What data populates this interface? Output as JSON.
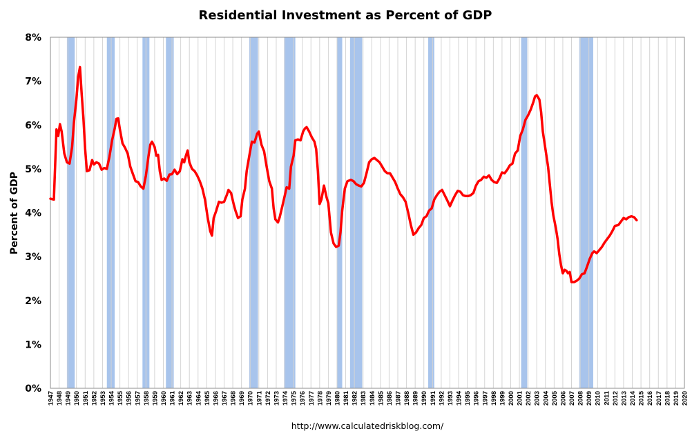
{
  "chart_data": {
    "type": "line",
    "title": "Residential Investment as Percent of GDP",
    "ylabel": "Percent of GDP",
    "xlabel": "",
    "footer": "http://www.calculatedriskblog.com/",
    "xlim": [
      1947,
      2020
    ],
    "ylim": [
      0,
      8
    ],
    "y_ticks": [
      "0%",
      "1%",
      "2%",
      "3%",
      "4%",
      "5%",
      "6%",
      "7%",
      "8%"
    ],
    "x_tick_labels": [
      "1947",
      "1948",
      "1949",
      "1950",
      "1951",
      "1952",
      "1953",
      "1954",
      "1955",
      "1956",
      "1957",
      "1958",
      "1959",
      "1960",
      "1961",
      "1962",
      "1963",
      "1964",
      "1965",
      "1966",
      "1967",
      "1968",
      "1969",
      "1970",
      "1971",
      "1972",
      "1973",
      "1974",
      "1975",
      "1976",
      "1977",
      "1978",
      "1979",
      "1980",
      "1981",
      "1982",
      "1983",
      "1984",
      "1985",
      "1986",
      "1987",
      "1988",
      "1989",
      "1990",
      "1991",
      "1992",
      "1993",
      "1994",
      "1995",
      "1996",
      "1997",
      "1998",
      "1999",
      "2000",
      "2001",
      "2002",
      "2003",
      "2004",
      "2005",
      "2006",
      "2007",
      "2008",
      "2009",
      "2010",
      "2011",
      "2012",
      "2013",
      "2014",
      "2015",
      "2016",
      "2017",
      "2018",
      "2019",
      "2020"
    ],
    "grid": "vertical",
    "line_color": "#ff0000",
    "recession_color": "#a8c4ec",
    "recessions": [
      [
        1948.9,
        1949.8
      ],
      [
        1953.5,
        1954.4
      ],
      [
        1957.6,
        1958.4
      ],
      [
        1960.3,
        1961.2
      ],
      [
        1969.9,
        1970.9
      ],
      [
        1973.9,
        1975.2
      ],
      [
        1980.0,
        1980.6
      ],
      [
        1981.5,
        1982.9
      ],
      [
        1990.5,
        1991.2
      ],
      [
        2001.2,
        2001.9
      ],
      [
        2007.9,
        2009.5
      ]
    ],
    "series": [
      {
        "values": [
          [
            1947.0,
            4.32
          ],
          [
            1947.4,
            4.3
          ],
          [
            1947.7,
            5.9
          ],
          [
            1947.9,
            5.75
          ],
          [
            1948.1,
            6.02
          ],
          [
            1948.3,
            5.85
          ],
          [
            1948.6,
            5.35
          ],
          [
            1948.9,
            5.15
          ],
          [
            1949.2,
            5.12
          ],
          [
            1949.5,
            5.5
          ],
          [
            1949.7,
            6.05
          ],
          [
            1950.0,
            6.6
          ],
          [
            1950.2,
            7.1
          ],
          [
            1950.4,
            7.32
          ],
          [
            1950.6,
            6.7
          ],
          [
            1950.8,
            6.15
          ],
          [
            1951.0,
            5.45
          ],
          [
            1951.2,
            4.95
          ],
          [
            1951.5,
            4.97
          ],
          [
            1951.8,
            5.2
          ],
          [
            1952.0,
            5.1
          ],
          [
            1952.3,
            5.15
          ],
          [
            1952.6,
            5.12
          ],
          [
            1952.9,
            4.98
          ],
          [
            1953.2,
            5.02
          ],
          [
            1953.5,
            5.0
          ],
          [
            1953.8,
            5.28
          ],
          [
            1954.1,
            5.65
          ],
          [
            1954.4,
            5.92
          ],
          [
            1954.6,
            6.14
          ],
          [
            1954.8,
            6.15
          ],
          [
            1955.0,
            5.9
          ],
          [
            1955.3,
            5.58
          ],
          [
            1955.6,
            5.48
          ],
          [
            1955.9,
            5.35
          ],
          [
            1956.2,
            5.05
          ],
          [
            1956.5,
            4.88
          ],
          [
            1956.8,
            4.72
          ],
          [
            1957.1,
            4.7
          ],
          [
            1957.4,
            4.6
          ],
          [
            1957.7,
            4.55
          ],
          [
            1958.0,
            4.85
          ],
          [
            1958.3,
            5.3
          ],
          [
            1958.5,
            5.55
          ],
          [
            1958.7,
            5.62
          ],
          [
            1959.0,
            5.5
          ],
          [
            1959.2,
            5.3
          ],
          [
            1959.4,
            5.32
          ],
          [
            1959.6,
            4.95
          ],
          [
            1959.8,
            4.75
          ],
          [
            1960.1,
            4.78
          ],
          [
            1960.4,
            4.73
          ],
          [
            1960.7,
            4.87
          ],
          [
            1961.0,
            4.88
          ],
          [
            1961.3,
            4.98
          ],
          [
            1961.6,
            4.88
          ],
          [
            1961.9,
            4.95
          ],
          [
            1962.2,
            5.22
          ],
          [
            1962.4,
            5.15
          ],
          [
            1962.6,
            5.3
          ],
          [
            1962.8,
            5.42
          ],
          [
            1963.0,
            5.15
          ],
          [
            1963.3,
            5.0
          ],
          [
            1963.6,
            4.95
          ],
          [
            1963.9,
            4.85
          ],
          [
            1964.2,
            4.72
          ],
          [
            1964.5,
            4.55
          ],
          [
            1964.8,
            4.3
          ],
          [
            1965.1,
            3.9
          ],
          [
            1965.4,
            3.58
          ],
          [
            1965.6,
            3.48
          ],
          [
            1965.8,
            3.88
          ],
          [
            1966.1,
            4.05
          ],
          [
            1966.4,
            4.25
          ],
          [
            1966.7,
            4.23
          ],
          [
            1967.0,
            4.25
          ],
          [
            1967.3,
            4.4
          ],
          [
            1967.5,
            4.52
          ],
          [
            1967.8,
            4.45
          ],
          [
            1968.1,
            4.2
          ],
          [
            1968.3,
            4.05
          ],
          [
            1968.6,
            3.88
          ],
          [
            1968.9,
            3.92
          ],
          [
            1969.1,
            4.3
          ],
          [
            1969.4,
            4.55
          ],
          [
            1969.6,
            4.95
          ],
          [
            1969.9,
            5.3
          ],
          [
            1970.2,
            5.62
          ],
          [
            1970.5,
            5.6
          ],
          [
            1970.8,
            5.8
          ],
          [
            1971.0,
            5.85
          ],
          [
            1971.3,
            5.55
          ],
          [
            1971.6,
            5.4
          ],
          [
            1971.9,
            5.05
          ],
          [
            1972.2,
            4.72
          ],
          [
            1972.5,
            4.55
          ],
          [
            1972.7,
            4.1
          ],
          [
            1972.9,
            3.85
          ],
          [
            1973.2,
            3.78
          ],
          [
            1973.4,
            3.9
          ],
          [
            1973.7,
            4.15
          ],
          [
            1974.0,
            4.4
          ],
          [
            1974.2,
            4.58
          ],
          [
            1974.5,
            4.55
          ],
          [
            1974.7,
            5.05
          ],
          [
            1975.0,
            5.3
          ],
          [
            1975.2,
            5.65
          ],
          [
            1975.5,
            5.67
          ],
          [
            1975.8,
            5.65
          ],
          [
            1976.1,
            5.85
          ],
          [
            1976.3,
            5.92
          ],
          [
            1976.5,
            5.95
          ],
          [
            1976.8,
            5.85
          ],
          [
            1977.1,
            5.72
          ],
          [
            1977.4,
            5.62
          ],
          [
            1977.6,
            5.45
          ],
          [
            1977.8,
            4.95
          ],
          [
            1978.0,
            4.2
          ],
          [
            1978.2,
            4.3
          ],
          [
            1978.5,
            4.62
          ],
          [
            1978.8,
            4.35
          ],
          [
            1979.0,
            4.22
          ],
          [
            1979.3,
            3.55
          ],
          [
            1979.6,
            3.3
          ],
          [
            1979.9,
            3.22
          ],
          [
            1980.2,
            3.25
          ],
          [
            1980.4,
            3.55
          ],
          [
            1980.6,
            4.05
          ],
          [
            1980.9,
            4.55
          ],
          [
            1981.2,
            4.72
          ],
          [
            1981.6,
            4.75
          ],
          [
            1981.9,
            4.72
          ],
          [
            1982.2,
            4.65
          ],
          [
            1982.5,
            4.62
          ],
          [
            1982.8,
            4.6
          ],
          [
            1983.1,
            4.68
          ],
          [
            1983.4,
            4.9
          ],
          [
            1983.7,
            5.15
          ],
          [
            1984.0,
            5.22
          ],
          [
            1984.3,
            5.25
          ],
          [
            1984.6,
            5.2
          ],
          [
            1984.9,
            5.15
          ],
          [
            1985.2,
            5.05
          ],
          [
            1985.5,
            4.95
          ],
          [
            1985.8,
            4.9
          ],
          [
            1986.1,
            4.9
          ],
          [
            1986.4,
            4.8
          ],
          [
            1986.7,
            4.7
          ],
          [
            1987.0,
            4.55
          ],
          [
            1987.3,
            4.42
          ],
          [
            1987.6,
            4.35
          ],
          [
            1987.9,
            4.25
          ],
          [
            1988.2,
            4.0
          ],
          [
            1988.5,
            3.72
          ],
          [
            1988.8,
            3.5
          ],
          [
            1989.1,
            3.55
          ],
          [
            1989.4,
            3.65
          ],
          [
            1989.7,
            3.72
          ],
          [
            1990.0,
            3.88
          ],
          [
            1990.3,
            3.92
          ],
          [
            1990.6,
            4.05
          ],
          [
            1990.9,
            4.1
          ],
          [
            1991.2,
            4.3
          ],
          [
            1991.5,
            4.4
          ],
          [
            1991.8,
            4.48
          ],
          [
            1992.1,
            4.52
          ],
          [
            1992.4,
            4.4
          ],
          [
            1992.7,
            4.28
          ],
          [
            1993.0,
            4.15
          ],
          [
            1993.3,
            4.28
          ],
          [
            1993.6,
            4.4
          ],
          [
            1993.9,
            4.5
          ],
          [
            1994.2,
            4.48
          ],
          [
            1994.5,
            4.4
          ],
          [
            1994.8,
            4.38
          ],
          [
            1995.1,
            4.38
          ],
          [
            1995.4,
            4.4
          ],
          [
            1995.7,
            4.45
          ],
          [
            1996.0,
            4.62
          ],
          [
            1996.3,
            4.72
          ],
          [
            1996.6,
            4.75
          ],
          [
            1996.9,
            4.82
          ],
          [
            1997.2,
            4.8
          ],
          [
            1997.5,
            4.85
          ],
          [
            1997.8,
            4.75
          ],
          [
            1998.1,
            4.7
          ],
          [
            1998.4,
            4.68
          ],
          [
            1998.7,
            4.78
          ],
          [
            1999.0,
            4.92
          ],
          [
            1999.3,
            4.9
          ],
          [
            1999.6,
            4.98
          ],
          [
            1999.9,
            5.08
          ],
          [
            2000.2,
            5.12
          ],
          [
            2000.5,
            5.35
          ],
          [
            2000.8,
            5.42
          ],
          [
            2001.1,
            5.75
          ],
          [
            2001.4,
            5.9
          ],
          [
            2001.7,
            6.12
          ],
          [
            2002.0,
            6.22
          ],
          [
            2002.3,
            6.35
          ],
          [
            2002.6,
            6.52
          ],
          [
            2002.8,
            6.65
          ],
          [
            2003.0,
            6.68
          ],
          [
            2003.3,
            6.58
          ],
          [
            2003.5,
            6.3
          ],
          [
            2003.7,
            5.85
          ],
          [
            2004.0,
            5.45
          ],
          [
            2004.3,
            5.05
          ],
          [
            2004.5,
            4.65
          ],
          [
            2004.7,
            4.25
          ],
          [
            2004.9,
            3.95
          ],
          [
            2005.2,
            3.65
          ],
          [
            2005.4,
            3.4
          ],
          [
            2005.6,
            3.05
          ],
          [
            2005.8,
            2.8
          ],
          [
            2006.0,
            2.62
          ],
          [
            2006.2,
            2.7
          ],
          [
            2006.4,
            2.68
          ],
          [
            2006.6,
            2.62
          ],
          [
            2006.8,
            2.65
          ],
          [
            2007.0,
            2.42
          ],
          [
            2007.3,
            2.42
          ],
          [
            2007.6,
            2.45
          ],
          [
            2007.9,
            2.5
          ],
          [
            2008.2,
            2.6
          ],
          [
            2008.5,
            2.62
          ],
          [
            2008.8,
            2.78
          ],
          [
            2009.1,
            2.95
          ],
          [
            2009.4,
            3.08
          ],
          [
            2009.6,
            3.12
          ],
          [
            2009.9,
            3.08
          ],
          [
            2010.2,
            3.15
          ],
          [
            2010.5,
            3.22
          ],
          [
            2010.8,
            3.32
          ],
          [
            2011.1,
            3.4
          ],
          [
            2011.4,
            3.48
          ],
          [
            2011.7,
            3.58
          ],
          [
            2012.0,
            3.7
          ],
          [
            2012.4,
            3.72
          ],
          [
            2012.7,
            3.8
          ],
          [
            2013.0,
            3.88
          ],
          [
            2013.3,
            3.85
          ],
          [
            2013.6,
            3.9
          ],
          [
            2013.9,
            3.92
          ],
          [
            2014.2,
            3.9
          ],
          [
            2014.5,
            3.83
          ]
        ]
      }
    ]
  }
}
